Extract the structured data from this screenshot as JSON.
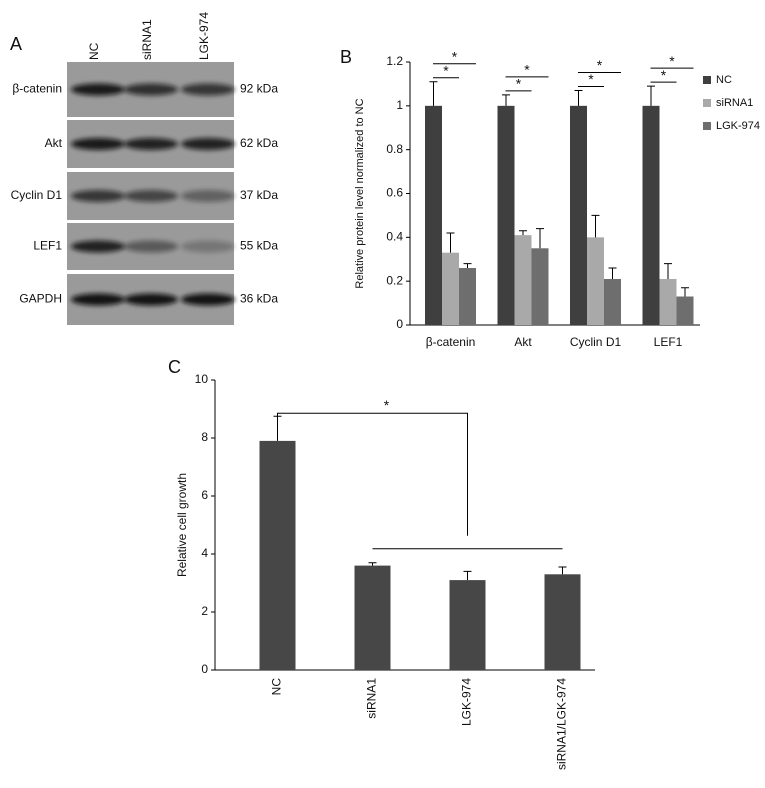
{
  "blot": {
    "label": "A",
    "lanes": [
      "NC",
      "siRNA1",
      "LGK-974"
    ],
    "rows": [
      {
        "protein": "β-catenin",
        "size": "92 kDa"
      },
      {
        "protein": "Akt",
        "size": "62 kDa"
      },
      {
        "protein": "Cyclin D1",
        "size": "37 kDa"
      },
      {
        "protein": "LEF1",
        "size": "55 kDa"
      },
      {
        "protein": "GAPDH",
        "size": "36 kDa"
      }
    ]
  },
  "chart_data": [
    {
      "type": "bar",
      "panel": "B",
      "ylabel": "Relative protein level normalized to NC",
      "categories": [
        "β-catenin",
        "Akt",
        "Cyclin D1",
        "LEF1"
      ],
      "series": [
        {
          "name": "NC",
          "color": "#3f3f3f",
          "values": [
            1,
            1,
            1,
            1
          ],
          "errors": [
            0.11,
            0.05,
            0.07,
            0.09
          ]
        },
        {
          "name": "siRNA1",
          "color": "#a9a9a9",
          "values": [
            0.33,
            0.41,
            0.4,
            0.21
          ],
          "errors": [
            0.09,
            0.02,
            0.1,
            0.07
          ]
        },
        {
          "name": "LGK-974",
          "color": "#6e6e6e",
          "values": [
            0.26,
            0.35,
            0.21,
            0.13
          ],
          "errors": [
            0.02,
            0.09,
            0.05,
            0.04
          ]
        }
      ],
      "ylim": [
        0,
        1.2
      ],
      "yticks": [
        0,
        0.2,
        0.4,
        0.6,
        0.8,
        1,
        1.2
      ],
      "significance_labels": [
        "*",
        "*",
        "*",
        "*",
        "*",
        "*",
        "*",
        "*"
      ]
    },
    {
      "type": "bar",
      "panel": "C",
      "ylabel": "Relative cell growth",
      "categories": [
        "NC",
        "siRNA1",
        "LGK-974",
        "siRNA1/LGK-974"
      ],
      "color": "#474747",
      "values": [
        7.9,
        3.6,
        3.1,
        3.3
      ],
      "errors": [
        0.85,
        0.1,
        0.3,
        0.25
      ],
      "ylim": [
        0,
        10
      ],
      "yticks": [
        0,
        2,
        4,
        6,
        8,
        10
      ],
      "significance_labels": [
        "*"
      ]
    }
  ]
}
